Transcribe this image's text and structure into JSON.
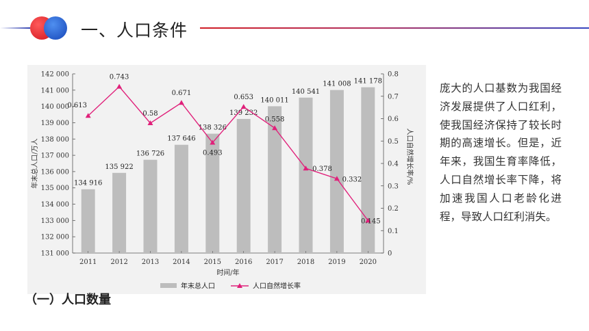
{
  "header": {
    "title": "一、人口条件"
  },
  "colors": {
    "logo_red": "#d0141c",
    "logo_blue": "#1646b8",
    "bar": "#bdbdbd",
    "line": "#e0207a"
  },
  "body_text": "庞大的人口基数为我国经济发展提供了人口红利，使我国经济保持了较长时期的高速增长。但是，近年来，我国生育率降低，人口自然增长率下降，将加速我国人口老龄化进程，导致人口红利消失。",
  "section_heading": "（一）人口数量",
  "chart_data": {
    "type": "bar",
    "categories": [
      "2011",
      "2012",
      "2013",
      "2014",
      "2015",
      "2016",
      "2017",
      "2018",
      "2019",
      "2020"
    ],
    "xlabel": "时间/年",
    "ylabel": "年末总人口/万人",
    "y2label": "人口自然增长率/%",
    "ylim": [
      131000,
      142000
    ],
    "y2lim": [
      0,
      0.8
    ],
    "yticks": [
      "131 000",
      "132 000",
      "133 000",
      "134 000",
      "135 000",
      "136 000",
      "137 000",
      "138 000",
      "139 000",
      "140 000",
      "141 000",
      "142 000"
    ],
    "y2ticks": [
      "0",
      "0.1",
      "0.2",
      "0.3",
      "0.4",
      "0.5",
      "0.6",
      "0.7",
      "0.8"
    ],
    "series": [
      {
        "name": "年末总人口",
        "type": "bar",
        "values": [
          134916,
          135922,
          136726,
          137646,
          138326,
          139232,
          140011,
          140541,
          141008,
          141178
        ],
        "labels": [
          "134 916",
          "135 922",
          "136 726",
          "137 646",
          "138 326",
          "139 232",
          "140 011",
          "140 541",
          "141 008",
          "141 178"
        ]
      },
      {
        "name": "人口自然增长率",
        "type": "line",
        "axis": "right",
        "values": [
          0.613,
          0.743,
          0.58,
          0.671,
          0.493,
          0.653,
          0.558,
          0.378,
          0.332,
          0.145
        ],
        "labels": [
          "0.613",
          "0.743",
          "0.58",
          "0.671",
          "0.493",
          "0.653",
          "0.558",
          "0.378",
          "0.332",
          "0.145"
        ]
      }
    ],
    "legend": "bottom",
    "grid": false
  }
}
